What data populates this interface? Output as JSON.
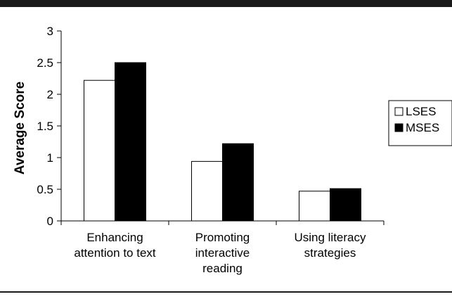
{
  "chart_data": {
    "type": "bar",
    "title": "",
    "xlabel": "",
    "ylabel": "Average Score",
    "ylim": [
      0,
      3
    ],
    "yticks": [
      "0",
      "0.5",
      "1",
      "1.5",
      "2",
      "2.5",
      "3"
    ],
    "categories": [
      [
        "Enhancing",
        "attention to text"
      ],
      [
        "Promoting",
        "interactive",
        "reading"
      ],
      [
        "Using literacy",
        "strategies"
      ]
    ],
    "series": [
      {
        "name": "LSES",
        "values": [
          2.22,
          0.94,
          0.47
        ],
        "color": "#ffffff"
      },
      {
        "name": "MSES",
        "values": [
          2.5,
          1.22,
          0.51
        ],
        "color": "#000000"
      }
    ],
    "legend": "right",
    "grid": false
  }
}
